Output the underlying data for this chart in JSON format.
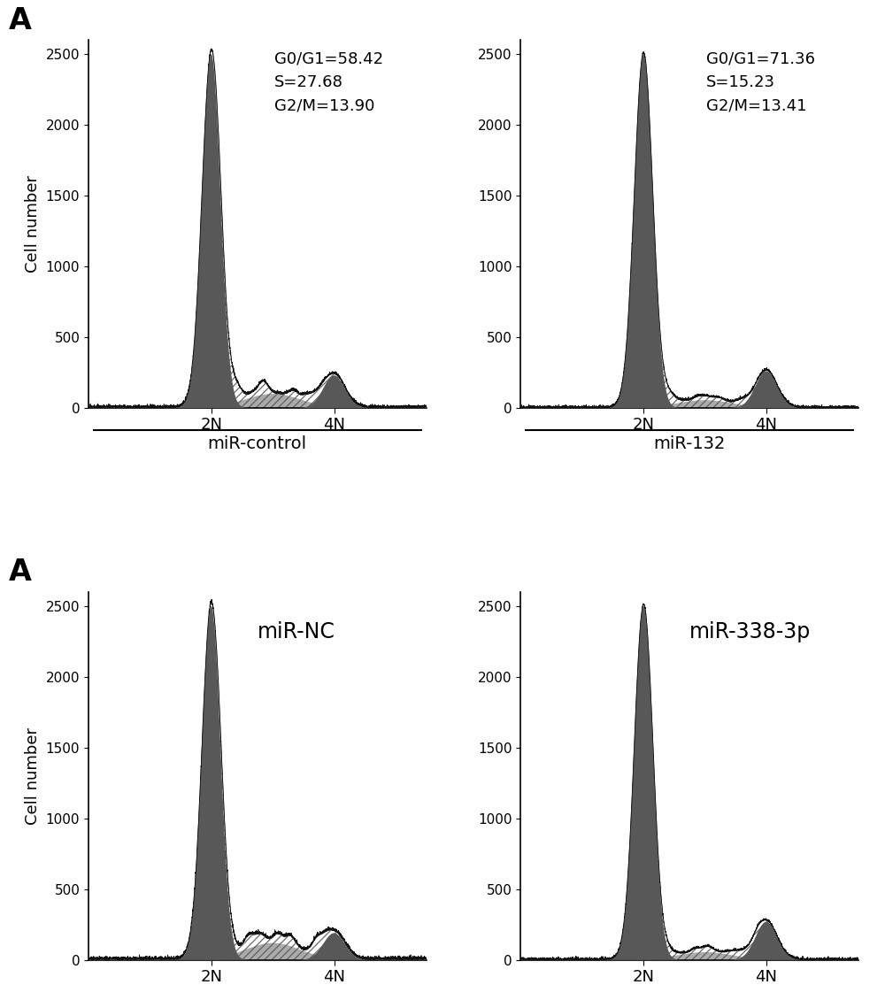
{
  "panel_label_top": "A",
  "panel_label_bottom": "A",
  "subplots": [
    {
      "stats_text": "G0/G1=58.42\nS=27.68\nG2/M=13.90",
      "label_inside": null,
      "xlabel_below": "miR-control",
      "g1_peak_x": 40,
      "g1_peak_y": 2500,
      "g1_sigma": 3.0,
      "g2_peak_x": 80,
      "g2_peak_y": 230,
      "g2_sigma": 3.5,
      "s_level": 100,
      "noise_seed": 1,
      "outer_seed": 50
    },
    {
      "stats_text": "G0/G1=71.36\nS=15.23\nG2/M=13.41",
      "label_inside": null,
      "xlabel_below": "miR-132",
      "g1_peak_x": 40,
      "g1_peak_y": 2500,
      "g1_sigma": 3.0,
      "g2_peak_x": 80,
      "g2_peak_y": 260,
      "g2_sigma": 3.5,
      "s_level": 55,
      "noise_seed": 2,
      "outer_seed": 51
    },
    {
      "stats_text": null,
      "label_inside": "miR-NC",
      "xlabel_below": null,
      "g1_peak_x": 40,
      "g1_peak_y": 2500,
      "g1_sigma": 3.0,
      "g2_peak_x": 80,
      "g2_peak_y": 190,
      "g2_sigma": 3.5,
      "s_level": 120,
      "noise_seed": 3,
      "outer_seed": 52
    },
    {
      "stats_text": null,
      "label_inside": "miR-338-3p",
      "xlabel_below": null,
      "g1_peak_x": 40,
      "g1_peak_y": 2500,
      "g1_sigma": 3.0,
      "g2_peak_x": 80,
      "g2_peak_y": 270,
      "g2_sigma": 3.5,
      "s_level": 55,
      "noise_seed": 4,
      "outer_seed": 53
    }
  ],
  "ylim": [
    0,
    2600
  ],
  "yticks": [
    0,
    500,
    1000,
    1500,
    2000,
    2500
  ],
  "xlim": [
    0,
    110
  ],
  "xticks_pos": [
    40,
    80
  ],
  "xtick_labels": [
    "2N",
    "4N"
  ],
  "ylabel": "Cell number",
  "bg_color": "#ffffff",
  "dark_fill_color": "#585858",
  "hatch_edge_color": "#777777",
  "line_color": "#111111"
}
